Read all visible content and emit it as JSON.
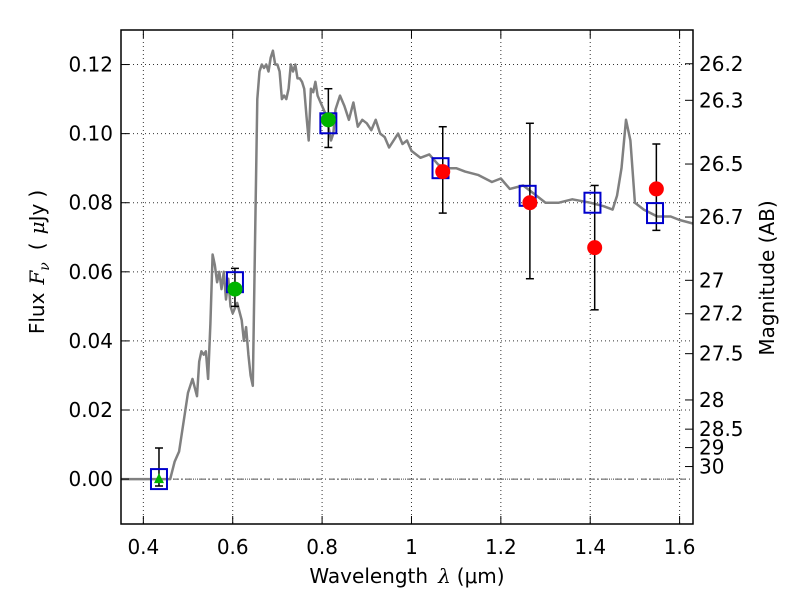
{
  "chart_data": {
    "type": "scatter",
    "xlabel": "Wavelength",
    "xlabel_symbol": "λ",
    "xlabel_unit": "(μm)",
    "ylabel_prefix": "Flux",
    "ylabel_symbol_main": "F",
    "ylabel_symbol_sub": "ν",
    "ylabel_unit_open": "(",
    "ylabel_unit_mu": "μ",
    "ylabel_unit_rest": "Jy",
    "ylabel_unit_close": ")",
    "ylabel_right": "Magnitude (AB)",
    "xlim": [
      0.35,
      1.63
    ],
    "ylim": [
      -0.013,
      0.13
    ],
    "grid": true,
    "x_ticks": [
      {
        "value": 0.4,
        "label": "0.4"
      },
      {
        "value": 0.6,
        "label": "0.6"
      },
      {
        "value": 0.8,
        "label": "0.8"
      },
      {
        "value": 1.0,
        "label": "1"
      },
      {
        "value": 1.2,
        "label": "1.2"
      },
      {
        "value": 1.4,
        "label": "1.4"
      },
      {
        "value": 1.6,
        "label": "1.6"
      }
    ],
    "y_ticks": [
      {
        "value": 0.0,
        "label": "0.00"
      },
      {
        "value": 0.02,
        "label": "0.02"
      },
      {
        "value": 0.04,
        "label": "0.04"
      },
      {
        "value": 0.06,
        "label": "0.06"
      },
      {
        "value": 0.08,
        "label": "0.08"
      },
      {
        "value": 0.1,
        "label": "0.10"
      },
      {
        "value": 0.12,
        "label": "0.12"
      }
    ],
    "right_ticks": [
      {
        "mag": 26.2,
        "label": "26.2"
      },
      {
        "mag": 26.3,
        "label": "26.3"
      },
      {
        "mag": 26.5,
        "label": "26.5"
      },
      {
        "mag": 26.7,
        "label": "26.7"
      },
      {
        "mag": 27.0,
        "label": "27"
      },
      {
        "mag": 27.2,
        "label": "27.2"
      },
      {
        "mag": 27.5,
        "label": "27.5"
      },
      {
        "mag": 28.0,
        "label": "28"
      },
      {
        "mag": 28.5,
        "label": "28.5"
      },
      {
        "mag": 29.0,
        "label": "29"
      },
      {
        "mag": 30.0,
        "label": "30"
      }
    ],
    "model_color": "#808080",
    "model_spectrum": {
      "x": [
        0.35,
        0.46,
        0.47,
        0.48,
        0.5,
        0.51,
        0.52,
        0.525,
        0.53,
        0.535,
        0.54,
        0.545,
        0.55,
        0.555,
        0.56,
        0.565,
        0.57,
        0.575,
        0.58,
        0.585,
        0.59,
        0.595,
        0.6,
        0.61,
        0.62,
        0.625,
        0.63,
        0.635,
        0.64,
        0.645,
        0.65,
        0.655,
        0.66,
        0.665,
        0.67,
        0.675,
        0.68,
        0.685,
        0.69,
        0.695,
        0.7,
        0.705,
        0.71,
        0.715,
        0.72,
        0.725,
        0.73,
        0.735,
        0.74,
        0.745,
        0.75,
        0.755,
        0.76,
        0.765,
        0.77,
        0.775,
        0.78,
        0.785,
        0.79,
        0.8,
        0.81,
        0.82,
        0.825,
        0.83,
        0.84,
        0.85,
        0.86,
        0.87,
        0.88,
        0.89,
        0.9,
        0.91,
        0.92,
        0.93,
        0.94,
        0.95,
        0.96,
        0.97,
        0.98,
        0.99,
        1.0,
        1.02,
        1.04,
        1.06,
        1.08,
        1.1,
        1.12,
        1.15,
        1.18,
        1.2,
        1.22,
        1.25,
        1.28,
        1.3,
        1.33,
        1.36,
        1.4,
        1.43,
        1.45,
        1.46,
        1.47,
        1.48,
        1.49,
        1.5,
        1.52,
        1.55,
        1.58,
        1.6,
        1.63
      ],
      "y": [
        0.0,
        0.0,
        0.005,
        0.008,
        0.025,
        0.029,
        0.024,
        0.034,
        0.037,
        0.036,
        0.037,
        0.029,
        0.045,
        0.065,
        0.062,
        0.057,
        0.06,
        0.055,
        0.06,
        0.052,
        0.058,
        0.05,
        0.048,
        0.051,
        0.046,
        0.04,
        0.044,
        0.036,
        0.03,
        0.027,
        0.07,
        0.11,
        0.118,
        0.12,
        0.119,
        0.12,
        0.118,
        0.122,
        0.124,
        0.12,
        0.12,
        0.118,
        0.11,
        0.111,
        0.11,
        0.113,
        0.12,
        0.118,
        0.12,
        0.116,
        0.116,
        0.115,
        0.113,
        0.105,
        0.098,
        0.113,
        0.112,
        0.115,
        0.111,
        0.108,
        0.105,
        0.098,
        0.1,
        0.107,
        0.111,
        0.108,
        0.104,
        0.109,
        0.102,
        0.104,
        0.103,
        0.101,
        0.104,
        0.1,
        0.099,
        0.096,
        0.098,
        0.1,
        0.097,
        0.098,
        0.095,
        0.093,
        0.094,
        0.091,
        0.09,
        0.09,
        0.089,
        0.088,
        0.086,
        0.087,
        0.084,
        0.085,
        0.082,
        0.08,
        0.08,
        0.081,
        0.08,
        0.079,
        0.078,
        0.082,
        0.09,
        0.104,
        0.098,
        0.08,
        0.078,
        0.076,
        0.076,
        0.075,
        0.074
      ]
    },
    "series": [
      {
        "name": "model-bandpass",
        "marker": "square",
        "color": "#0000cc",
        "points": [
          [
            0.435,
            0.0
          ],
          [
            0.605,
            0.057
          ],
          [
            0.814,
            0.103
          ],
          [
            1.065,
            0.09
          ],
          [
            1.26,
            0.082
          ],
          [
            1.405,
            0.08
          ],
          [
            1.545,
            0.077
          ]
        ]
      },
      {
        "name": "observed-optical",
        "marker": "circle",
        "color": "#00b400",
        "points": [
          [
            0.605,
            0.055
          ],
          [
            0.814,
            0.104
          ]
        ]
      },
      {
        "name": "observed-nir",
        "marker": "circle",
        "color": "#ff0000",
        "points": [
          [
            1.07,
            0.089
          ],
          [
            1.265,
            0.08
          ],
          [
            1.41,
            0.067
          ],
          [
            1.548,
            0.084
          ]
        ]
      },
      {
        "name": "upper-limit",
        "marker": "triangle",
        "color": "#00b400",
        "points": [
          [
            0.435,
            0.0
          ]
        ]
      }
    ],
    "error_bars": [
      {
        "x": 0.435,
        "ylo": -0.002,
        "yhi": 0.009
      },
      {
        "x": 0.605,
        "ylo": 0.05,
        "yhi": 0.061
      },
      {
        "x": 0.814,
        "ylo": 0.096,
        "yhi": 0.113
      },
      {
        "x": 1.07,
        "ylo": 0.077,
        "yhi": 0.102
      },
      {
        "x": 1.265,
        "ylo": 0.058,
        "yhi": 0.103
      },
      {
        "x": 1.41,
        "ylo": 0.049,
        "yhi": 0.085
      },
      {
        "x": 1.548,
        "ylo": 0.072,
        "yhi": 0.097
      }
    ]
  }
}
